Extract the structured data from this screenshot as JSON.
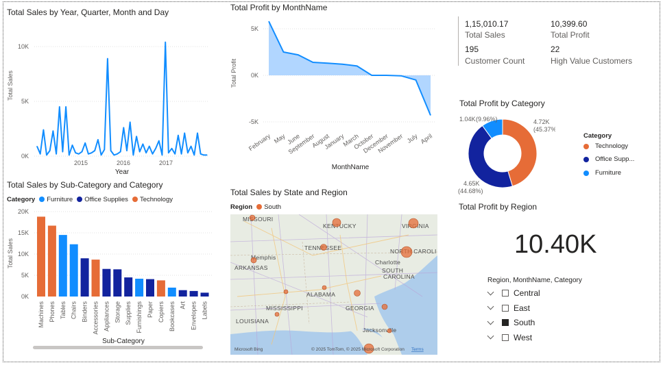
{
  "colors": {
    "line_blue": "#118dff",
    "furniture": "#118dff",
    "office_supplies": "#12239e",
    "technology": "#e66c37",
    "area_fill": "#a8d2ff"
  },
  "sales_line": {
    "title": "Total Sales by Year, Quarter, Month and Day",
    "ylabel": "Total Sales",
    "xlabel": "Year",
    "yticks": [
      "10K",
      "5K",
      "0K"
    ],
    "xticks": [
      "2015",
      "2016",
      "2017"
    ]
  },
  "profit_month": {
    "title": "Total Profit by MonthName",
    "ylabel": "Total Profit",
    "xlabel": "MonthName",
    "yticks": [
      "5K",
      "0K",
      "-5K"
    ]
  },
  "kpis": [
    {
      "value": "1,15,010.17",
      "label": "Total Sales"
    },
    {
      "value": "10,399.60",
      "label": "Total Profit"
    },
    {
      "value": "195",
      "label": "Customer Count"
    },
    {
      "value": "22",
      "label": "High Value Customers"
    }
  ],
  "donut": {
    "title": "Total Profit by Category",
    "legend_title": "Category",
    "legend": [
      "Technology",
      "Office Supp...",
      "Furniture"
    ],
    "labels": [
      {
        "value": "4.72K",
        "pct": "(45.37%)"
      },
      {
        "value": "4.65K",
        "pct": "(44.68%)"
      },
      {
        "value": "1.04K",
        "pct": "(9.96%)"
      }
    ]
  },
  "subcat": {
    "title": "Total Sales by Sub-Category and Category",
    "legend_title": "Category",
    "legend": [
      "Furniture",
      "Office Supplies",
      "Technology"
    ],
    "ylabel": "Total Sales",
    "xlabel": "Sub-Category",
    "yticks": [
      "20K",
      "15K",
      "10K",
      "5K",
      "0K"
    ]
  },
  "map": {
    "title": "Total Sales by State and Region",
    "legend_title": "Region",
    "legend_item": "South",
    "labels": [
      "MISSOURI",
      "KENTUCKY",
      "VIRGINIA",
      "Memphis",
      "TENNESSEE",
      "NORTH CAROLI",
      "ARKANSAS",
      "Charlotte",
      "SOUTH",
      "CAROLINA",
      "ALABAMA",
      "MISSISSIPPI",
      "GEORGIA",
      "LOUISIANA",
      "Jacksonville"
    ],
    "attribution": "© 2025 TomTom, © 2025 Microsoft Corporation",
    "terms": "Terms",
    "brand": "Microsoft Bing"
  },
  "region_card": {
    "title": "Total Profit by Region",
    "value": "10.40K"
  },
  "slicer": {
    "title": "Region, MonthName, Category",
    "items": [
      {
        "label": "Central",
        "checked": false
      },
      {
        "label": "East",
        "checked": false
      },
      {
        "label": "South",
        "checked": true
      },
      {
        "label": "West",
        "checked": false
      }
    ]
  },
  "chart_data": [
    {
      "type": "line",
      "title": "Total Sales by Year, Quarter, Month and Day",
      "xlabel": "Year",
      "ylabel": "Total Sales",
      "ylim": [
        0,
        11000
      ],
      "x_range": [
        "2014",
        "2017"
      ],
      "series": [
        {
          "values": [
            900,
            200,
            2400,
            100,
            500,
            2300,
            200,
            4500,
            400,
            4500,
            100,
            1000,
            300,
            200,
            400,
            1200,
            200,
            300,
            500,
            1500,
            100,
            600,
            8900,
            500,
            100,
            200,
            400,
            2600,
            500,
            3100,
            100,
            1800,
            400,
            1100,
            300,
            900,
            200,
            700,
            1400,
            100,
            10400,
            300,
            700,
            200,
            1900,
            200,
            2100,
            300,
            900,
            100,
            2100,
            200,
            100,
            100
          ]
        }
      ]
    },
    {
      "type": "area",
      "title": "Total Profit by MonthName",
      "xlabel": "MonthName",
      "ylabel": "Total Profit",
      "ylim": [
        -6000,
        6000
      ],
      "categories": [
        "February",
        "May",
        "June",
        "September",
        "August",
        "January",
        "March",
        "October",
        "December",
        "November",
        "July",
        "April"
      ],
      "series": [
        {
          "values": [
            5800,
            2500,
            2200,
            1400,
            1300,
            1200,
            1000,
            0,
            0,
            -50,
            -500,
            -4300
          ]
        }
      ]
    },
    {
      "type": "pie",
      "title": "Total Profit by Category",
      "categories": [
        "Technology",
        "Office Supplies",
        "Furniture"
      ],
      "values": [
        4720,
        4650,
        1040
      ],
      "percent": [
        45.37,
        44.68,
        9.96
      ]
    },
    {
      "type": "bar",
      "title": "Total Sales by Sub-Category and Category",
      "xlabel": "Sub-Category",
      "ylabel": "Total Sales",
      "ylim": [
        0,
        20000
      ],
      "categories": [
        "Machines",
        "Phones",
        "Tables",
        "Chairs",
        "Binders",
        "Accessories",
        "Appliances",
        "Storage",
        "Supplies",
        "Furnishings",
        "Paper",
        "Copiers",
        "Bookcases",
        "Art",
        "Envelopes",
        "Labels"
      ],
      "values": [
        18800,
        16700,
        14500,
        12300,
        9000,
        8700,
        6500,
        6400,
        4500,
        4200,
        4100,
        3800,
        2100,
        1500,
        1300,
        900
      ],
      "category_group": [
        "Technology",
        "Technology",
        "Furniture",
        "Furniture",
        "Office Supplies",
        "Technology",
        "Office Supplies",
        "Office Supplies",
        "Office Supplies",
        "Furniture",
        "Office Supplies",
        "Technology",
        "Furniture",
        "Office Supplies",
        "Office Supplies",
        "Office Supplies"
      ]
    }
  ]
}
